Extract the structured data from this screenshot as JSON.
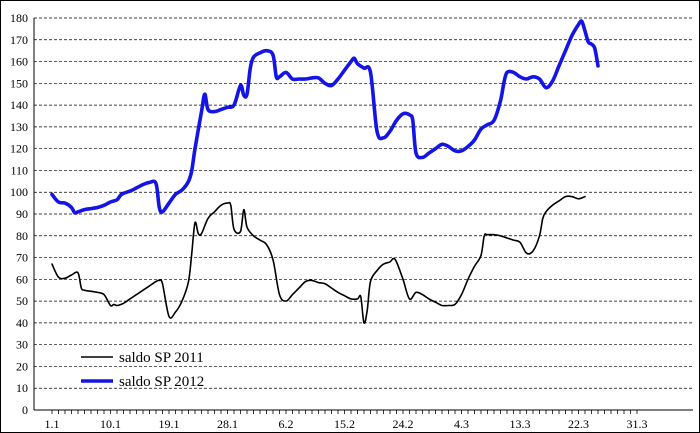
{
  "chart_data": {
    "type": "line",
    "title": "",
    "xlabel": "",
    "ylabel": "",
    "ylim": [
      0,
      180
    ],
    "y_ticks": [
      0,
      10,
      20,
      30,
      40,
      50,
      60,
      70,
      80,
      90,
      100,
      110,
      120,
      130,
      140,
      150,
      160,
      170,
      180
    ],
    "x_tick_labels": [
      "1.1",
      "10.1",
      "19.1",
      "28.1",
      "6.2",
      "15.2",
      "24.2",
      "4.3",
      "13.3",
      "22.3",
      "31.3"
    ],
    "x_range_days": [
      1,
      91
    ],
    "grid": "horizontal dashed",
    "legend_position": "bottom-left",
    "series": [
      {
        "name": "saldo SP 2011",
        "color": "#000000",
        "points": [
          [
            1,
            67
          ],
          [
            2,
            61
          ],
          [
            3,
            60.5
          ],
          [
            4,
            62
          ],
          [
            5,
            63
          ],
          [
            5.5,
            56
          ],
          [
            6,
            55
          ],
          [
            7,
            54.5
          ],
          [
            8,
            54
          ],
          [
            9,
            53
          ],
          [
            10,
            48
          ],
          [
            10.5,
            48.5
          ],
          [
            11,
            48
          ],
          [
            12,
            49
          ],
          [
            13,
            51
          ],
          [
            14,
            53
          ],
          [
            15,
            55
          ],
          [
            16,
            57
          ],
          [
            17,
            59
          ],
          [
            17.5,
            59.5
          ],
          [
            18,
            58
          ],
          [
            19,
            43
          ],
          [
            20,
            45
          ],
          [
            21,
            50
          ],
          [
            22,
            59
          ],
          [
            22.5,
            72
          ],
          [
            23,
            86
          ],
          [
            23.5,
            81
          ],
          [
            24,
            81
          ],
          [
            25,
            88
          ],
          [
            26,
            91
          ],
          [
            27,
            94
          ],
          [
            28,
            95
          ],
          [
            28.5,
            94
          ],
          [
            29,
            83
          ],
          [
            30,
            82
          ],
          [
            30.5,
            92
          ],
          [
            31,
            84
          ],
          [
            32,
            80
          ],
          [
            33,
            78
          ],
          [
            34,
            76
          ],
          [
            35,
            69
          ],
          [
            36,
            53
          ],
          [
            37,
            50
          ],
          [
            38,
            53
          ],
          [
            39,
            56
          ],
          [
            40,
            59
          ],
          [
            41,
            59.5
          ],
          [
            42,
            58.5
          ],
          [
            43,
            58
          ],
          [
            44,
            56
          ],
          [
            45,
            54
          ],
          [
            46,
            52.5
          ],
          [
            47,
            51
          ],
          [
            48,
            51
          ],
          [
            48.5,
            52
          ],
          [
            49,
            40
          ],
          [
            49.5,
            46
          ],
          [
            50,
            59
          ],
          [
            51,
            64
          ],
          [
            52,
            67
          ],
          [
            53,
            68
          ],
          [
            53.5,
            69.5
          ],
          [
            54,
            68
          ],
          [
            55,
            60
          ],
          [
            56,
            51
          ],
          [
            57,
            54
          ],
          [
            58,
            53
          ],
          [
            59,
            51
          ],
          [
            60,
            49.5
          ],
          [
            61,
            48
          ],
          [
            62,
            48
          ],
          [
            63,
            48.5
          ],
          [
            64,
            53
          ],
          [
            65,
            60
          ],
          [
            66,
            66
          ],
          [
            67,
            71
          ],
          [
            67.5,
            80
          ],
          [
            68,
            80.5
          ],
          [
            69,
            80.5
          ],
          [
            70,
            80
          ],
          [
            71,
            79
          ],
          [
            72,
            78
          ],
          [
            73,
            77
          ],
          [
            74,
            72
          ],
          [
            75,
            73
          ],
          [
            76,
            80
          ],
          [
            76.5,
            88
          ],
          [
            77,
            91
          ],
          [
            78,
            94
          ],
          [
            79,
            96
          ],
          [
            80,
            98
          ],
          [
            81,
            98
          ],
          [
            82,
            97
          ],
          [
            83,
            98
          ]
        ]
      },
      {
        "name": "saldo SP 2012",
        "color": "#1414e6",
        "points": [
          [
            1,
            99
          ],
          [
            2,
            95.5
          ],
          [
            3,
            95
          ],
          [
            4,
            93
          ],
          [
            4.5,
            90.5
          ],
          [
            5,
            91
          ],
          [
            6,
            92
          ],
          [
            7,
            92.5
          ],
          [
            8,
            93
          ],
          [
            9,
            94
          ],
          [
            10,
            95.5
          ],
          [
            11,
            96.5
          ],
          [
            11.5,
            98.5
          ],
          [
            12,
            99.5
          ],
          [
            13,
            100.5
          ],
          [
            14,
            102
          ],
          [
            15,
            103.5
          ],
          [
            16,
            104.5
          ],
          [
            17,
            104
          ],
          [
            17.5,
            93
          ],
          [
            18,
            91
          ],
          [
            19,
            95
          ],
          [
            20,
            99
          ],
          [
            21,
            101
          ],
          [
            22,
            105
          ],
          [
            22.5,
            110
          ],
          [
            23,
            120
          ],
          [
            24,
            137
          ],
          [
            24.5,
            145
          ],
          [
            25,
            138
          ],
          [
            26,
            137
          ],
          [
            27,
            138
          ],
          [
            28,
            139
          ],
          [
            29,
            140
          ],
          [
            30,
            149
          ],
          [
            30.5,
            144.5
          ],
          [
            31,
            145
          ],
          [
            31.5,
            157
          ],
          [
            32,
            162
          ],
          [
            33,
            164
          ],
          [
            34,
            165
          ],
          [
            35,
            163
          ],
          [
            35.5,
            153
          ],
          [
            36,
            153
          ],
          [
            37,
            155
          ],
          [
            38,
            152
          ],
          [
            39,
            152
          ],
          [
            40,
            152
          ],
          [
            41,
            152.5
          ],
          [
            42,
            152.5
          ],
          [
            43,
            150
          ],
          [
            44,
            149
          ],
          [
            45,
            152
          ],
          [
            46,
            156
          ],
          [
            47,
            160
          ],
          [
            47.5,
            161.5
          ],
          [
            48,
            159
          ],
          [
            49,
            157
          ],
          [
            50,
            155
          ],
          [
            51,
            128
          ],
          [
            52,
            125
          ],
          [
            53,
            128
          ],
          [
            54,
            133
          ],
          [
            55,
            136
          ],
          [
            56,
            135.5
          ],
          [
            56.5,
            133
          ],
          [
            57,
            118
          ],
          [
            58,
            116
          ],
          [
            59,
            118
          ],
          [
            60,
            120
          ],
          [
            61,
            122
          ],
          [
            62,
            121
          ],
          [
            63,
            119
          ],
          [
            64,
            119
          ],
          [
            65,
            121
          ],
          [
            66,
            124
          ],
          [
            67,
            129
          ],
          [
            68,
            131
          ],
          [
            69,
            133
          ],
          [
            70,
            142
          ],
          [
            70.5,
            150
          ],
          [
            71,
            155
          ],
          [
            72,
            155
          ],
          [
            73,
            153
          ],
          [
            74,
            152
          ],
          [
            75,
            153
          ],
          [
            76,
            152
          ],
          [
            77,
            148
          ],
          [
            78,
            151
          ],
          [
            79,
            158
          ],
          [
            80,
            165
          ],
          [
            81,
            172
          ],
          [
            82,
            177
          ],
          [
            82.5,
            178.5
          ],
          [
            83,
            174
          ],
          [
            83.5,
            169
          ],
          [
            84,
            168
          ],
          [
            84.5,
            166
          ],
          [
            85,
            158
          ]
        ]
      }
    ]
  }
}
